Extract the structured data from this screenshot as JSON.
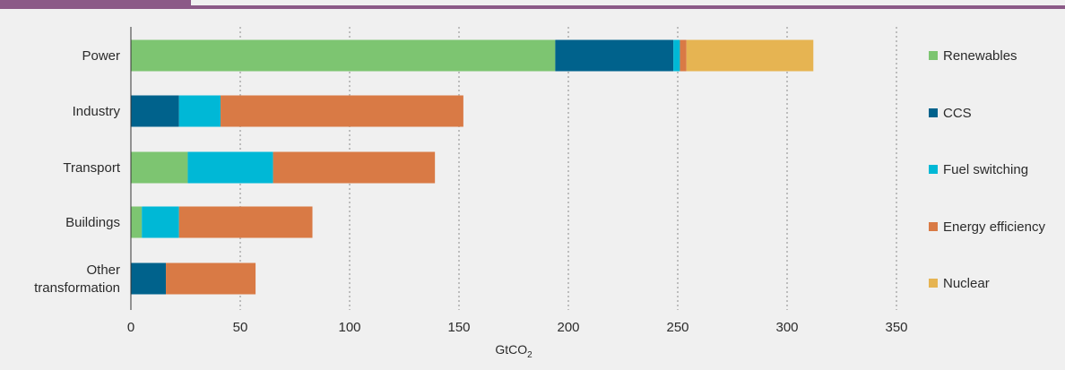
{
  "chart_data": {
    "type": "bar",
    "orientation": "horizontal",
    "stacked": true,
    "categories": [
      "Power",
      "Industry",
      "Transport",
      "Buildings",
      "Other transformation"
    ],
    "series": [
      {
        "name": "Renewables",
        "color": "#7dc571",
        "values": [
          194,
          0,
          26,
          5,
          0
        ]
      },
      {
        "name": "CCS",
        "color": "#00628c",
        "values": [
          54,
          22,
          0,
          0,
          16
        ]
      },
      {
        "name": "Fuel switching",
        "color": "#00b8d6",
        "values": [
          3,
          19,
          39,
          17,
          0
        ]
      },
      {
        "name": "Energy efficiency",
        "color": "#d97a45",
        "values": [
          3,
          111,
          74,
          61,
          41
        ]
      },
      {
        "name": "Nuclear",
        "color": "#e6b452",
        "values": [
          58,
          0,
          0,
          0,
          0
        ]
      }
    ],
    "xlim": [
      0,
      350
    ],
    "xticks": [
      0,
      50,
      100,
      150,
      200,
      250,
      300,
      350
    ],
    "xlabel_main": "GtCO",
    "xlabel_sub": "2",
    "grid": "vertical dotted",
    "legend_position": "right"
  }
}
